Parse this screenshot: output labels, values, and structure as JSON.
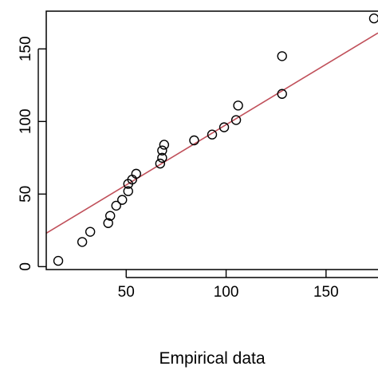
{
  "chart_data": {
    "type": "scatter",
    "title": "",
    "xlabel": "Empirical data",
    "ylabel": "",
    "xlim": [
      10,
      176
    ],
    "ylim": [
      -2,
      176
    ],
    "x_ticks": [
      50,
      100,
      150
    ],
    "x_tick_labels": [
      "50",
      "100",
      "150"
    ],
    "y_ticks": [
      0,
      50,
      100,
      150
    ],
    "y_tick_labels": [
      "0",
      "50",
      "100",
      "150"
    ],
    "grid": false,
    "legend": "none",
    "points_style": {
      "marker": "open-circle",
      "color": "#000000"
    },
    "line_style": {
      "color": "#c0505a"
    },
    "reference_line": {
      "x": [
        10,
        176
      ],
      "y": [
        23,
        161
      ]
    },
    "series": [
      {
        "points": [
          {
            "x": 16,
            "y": 4
          },
          {
            "x": 28,
            "y": 17
          },
          {
            "x": 32,
            "y": 24
          },
          {
            "x": 41,
            "y": 30
          },
          {
            "x": 42,
            "y": 35
          },
          {
            "x": 45,
            "y": 42
          },
          {
            "x": 48,
            "y": 46
          },
          {
            "x": 51,
            "y": 52
          },
          {
            "x": 51,
            "y": 57
          },
          {
            "x": 53,
            "y": 60
          },
          {
            "x": 55,
            "y": 64
          },
          {
            "x": 67,
            "y": 71
          },
          {
            "x": 68,
            "y": 75
          },
          {
            "x": 68,
            "y": 80
          },
          {
            "x": 69,
            "y": 84
          },
          {
            "x": 84,
            "y": 87
          },
          {
            "x": 93,
            "y": 91
          },
          {
            "x": 99,
            "y": 96
          },
          {
            "x": 105,
            "y": 101
          },
          {
            "x": 106,
            "y": 111
          },
          {
            "x": 128,
            "y": 119
          },
          {
            "x": 128,
            "y": 145
          },
          {
            "x": 174,
            "y": 171
          }
        ]
      }
    ]
  }
}
